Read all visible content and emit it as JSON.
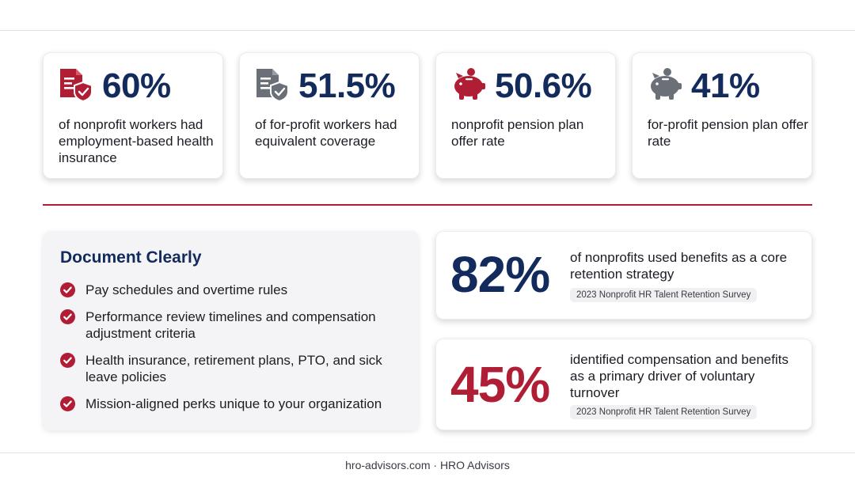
{
  "colors": {
    "navy": "#122a5c",
    "crimson": "#b01e35",
    "gray_icon": "#6b6f78"
  },
  "stats": [
    {
      "icon": "document-shield-icon",
      "value": "60%",
      "desc": "of nonprofit workers had employment-based health insurance"
    },
    {
      "icon": "document-shield-icon",
      "value": "51.5%",
      "desc": "of for-profit workers had equivalent coverage"
    },
    {
      "icon": "piggy-bank-icon",
      "value": "50.6%",
      "desc": "nonprofit pension plan offer rate"
    },
    {
      "icon": "piggy-bank-icon",
      "value": "41%",
      "desc": "for-profit pension plan offer rate"
    }
  ],
  "document": {
    "title": "Document Clearly",
    "items": [
      "Pay schedules and overtime rules",
      "Performance review timelines and compensation adjustment criteria",
      "Health insurance, retirement plans, PTO, and sick leave policies",
      "Mission-aligned perks unique to your organization"
    ]
  },
  "highlights": [
    {
      "value": "82%",
      "desc": "of nonprofits used benefits as a core retention strategy",
      "source": "2023 Nonprofit HR Talent Retention Survey"
    },
    {
      "value": "45%",
      "desc": "identified compensation and benefits as a primary driver of voluntary turnover",
      "source": "2023 Nonprofit HR Talent Retention Survey"
    }
  ],
  "footer": "hro-advisors.com · HRO Advisors"
}
